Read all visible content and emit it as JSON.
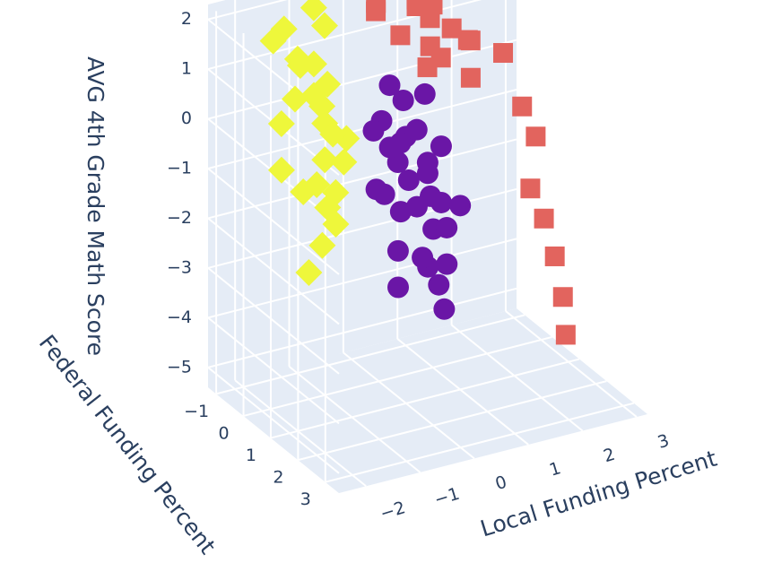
{
  "chart_data": {
    "type": "scatter3d",
    "x_title": "Local Funding Percent",
    "y_title": "Federal Funding Percent",
    "z_title": "AVG 4th Grade Math Score",
    "xlim": [
      -2.5,
      3.2
    ],
    "ylim": [
      -1.3,
      3.5
    ],
    "zlim": [
      -5.4,
      2.3
    ],
    "xticks": [
      {
        "value": -2,
        "label": "−2"
      },
      {
        "value": -1,
        "label": "−1"
      },
      0,
      1,
      2,
      3
    ],
    "yticks": [
      {
        "value": -1,
        "label": "−1"
      },
      0,
      1,
      2,
      3
    ],
    "zticks": [
      {
        "value": -5,
        "label": "−5"
      },
      {
        "value": -4,
        "label": "−4"
      },
      {
        "value": -3,
        "label": "−3"
      },
      {
        "value": -2,
        "label": "−2"
      },
      {
        "value": -1,
        "label": "−1"
      },
      0,
      1,
      2
    ],
    "grid": true,
    "series": [
      {
        "color": "#e2645e",
        "marker": "square",
        "x": [
          0.8,
          1.2,
          0.5,
          1.5,
          1.0,
          1.8,
          0.6,
          1.4,
          2.0,
          0.9,
          1.1,
          1.6,
          0.4,
          1.3,
          2.2,
          0.7,
          1.9,
          2.7,
          2.9,
          3.0,
          2.8,
          2.9,
          3.0,
          3.1,
          3.0
        ],
        "y": [
          -1.2,
          -1.0,
          -0.8,
          -1.1,
          -0.6,
          -0.9,
          -1.3,
          -0.5,
          -0.7,
          -1.0,
          -0.3,
          -1.2,
          -0.9,
          -0.8,
          -1.0,
          -0.6,
          -0.4,
          -0.8,
          -0.5,
          -0.2,
          0.0,
          0.3,
          0.5,
          0.6,
          0.9
        ],
        "z": [
          1.9,
          1.5,
          2.1,
          1.0,
          1.6,
          0.8,
          1.3,
          0.5,
          0.6,
          1.8,
          0.9,
          1.2,
          1.7,
          0.2,
          0.4,
          1.1,
          0.0,
          0.1,
          -0.9,
          -1.4,
          -2.3,
          -2.8,
          -3.5,
          -4.3,
          -4.9
        ]
      },
      {
        "color": "#eef73b",
        "marker": "diamond",
        "x": [
          -1.8,
          -1.5,
          -1.2,
          -2.0,
          -1.6,
          -1.0,
          -1.4,
          -1.7,
          -0.9,
          -1.3,
          -1.9,
          -1.1,
          -1.5,
          -2.1,
          -1.2,
          -0.8,
          -1.6,
          -1.4,
          -1.0,
          -1.8,
          -1.3,
          -2.2,
          -1.5,
          -1.1,
          -0.9
        ],
        "y": [
          0.5,
          0.0,
          0.3,
          1.2,
          -0.3,
          0.1,
          0.8,
          -0.5,
          0.6,
          1.0,
          0.2,
          -0.2,
          1.4,
          0.6,
          0.4,
          -0.4,
          0.9,
          -0.1,
          0.7,
          1.5,
          0.2,
          1.8,
          1.1,
          0.5,
          -0.6
        ],
        "z": [
          1.0,
          1.5,
          0.6,
          -0.5,
          2.0,
          0.9,
          -0.2,
          1.7,
          0.0,
          -0.8,
          0.4,
          1.2,
          -1.2,
          -0.3,
          0.3,
          1.8,
          -0.6,
          1.3,
          -0.4,
          -1.5,
          0.8,
          -1.8,
          -1.0,
          0.1,
          2.1
        ]
      },
      {
        "color": "#6a16a6",
        "marker": "circle",
        "x": [
          0.1,
          -0.3,
          0.4,
          0.2,
          -0.1,
          0.6,
          0.3,
          -0.5,
          0.0,
          0.5,
          0.8,
          -0.2,
          0.2,
          0.7,
          -0.4,
          0.1,
          0.4,
          0.9,
          -0.1,
          0.3,
          0.0,
          0.6,
          -0.3,
          0.2,
          0.5,
          1.0,
          -0.6,
          0.1,
          0.4,
          0.3
        ],
        "y": [
          0.5,
          0.8,
          0.2,
          1.0,
          0.3,
          0.6,
          1.4,
          0.9,
          1.8,
          0.4,
          0.1,
          1.2,
          0.7,
          0.9,
          1.5,
          2.0,
          1.1,
          0.5,
          0.6,
          0.3,
          1.6,
          1.3,
          0.4,
          0.0,
          0.8,
          1.0,
          1.9,
          2.2,
          1.7,
          0.2
        ],
        "z": [
          -0.8,
          -1.2,
          -0.5,
          -1.5,
          0.0,
          -0.9,
          -1.8,
          -1.0,
          -2.3,
          -0.3,
          0.2,
          -1.4,
          -1.1,
          -1.6,
          -2.0,
          -2.6,
          -1.3,
          -0.7,
          -0.4,
          0.3,
          -2.2,
          -1.9,
          -0.1,
          0.5,
          -1.0,
          -1.7,
          -2.5,
          -3.0,
          -2.4,
          -0.6
        ]
      }
    ]
  }
}
